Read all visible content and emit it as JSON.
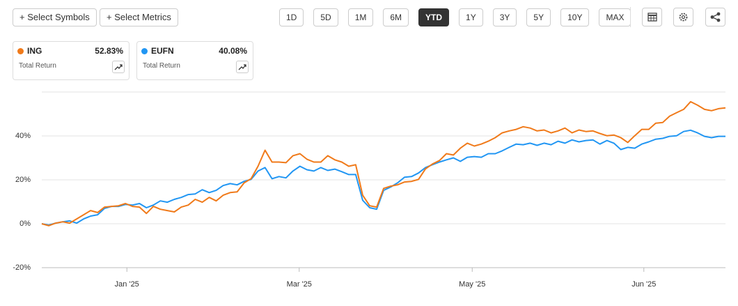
{
  "toolbar": {
    "buttons": [
      "+ Select Symbols",
      "+ Select Metrics"
    ],
    "ranges": [
      "1D",
      "5D",
      "1M",
      "6M",
      "YTD",
      "1Y",
      "3Y",
      "5Y",
      "10Y",
      "MAX"
    ],
    "active_range": 4
  },
  "cards": [
    {
      "value": "52.83%",
      "label": "Total Return"
    },
    {
      "value": "40.08%",
      "label": "Total Return"
    }
  ],
  "chart_data": {
    "type": "line",
    "grid": true,
    "xlim": [
      0,
      98
    ],
    "xticks": [
      {
        "value": 12.2,
        "label": "Jan '25"
      },
      {
        "value": 36.9,
        "label": "Mar '25"
      },
      {
        "value": 61.7,
        "label": "May '25"
      },
      {
        "value": 86.3,
        "label": "Jun '25"
      }
    ],
    "ylim": [
      -20,
      60
    ],
    "yticks": [
      {
        "value": -20,
        "label": "-20%"
      },
      {
        "value": 0,
        "label": "0%"
      },
      {
        "value": 20,
        "label": "20%"
      },
      {
        "value": 40,
        "label": "40%"
      }
    ],
    "series": [
      {
        "name": "ING",
        "color": "#f07a1a",
        "values": [
          0,
          -0.9,
          0.3,
          0.9,
          0.3,
          2.2,
          4.1,
          6.0,
          5.1,
          7.6,
          7.9,
          8.2,
          9.2,
          7.9,
          7.6,
          4.7,
          7.9,
          6.6,
          6.0,
          5.4,
          7.6,
          8.5,
          11.1,
          9.8,
          12.0,
          10.4,
          13.0,
          14.2,
          14.5,
          18.6,
          20.5,
          26.2,
          33.5,
          28.1,
          28.1,
          27.8,
          31.0,
          31.9,
          29.4,
          28.1,
          28.1,
          31.0,
          29.1,
          28.1,
          26.2,
          26.9,
          13.0,
          8.2,
          7.6,
          16.1,
          17.1,
          17.7,
          19.0,
          19.3,
          20.2,
          25.0,
          27.2,
          28.8,
          31.9,
          31.3,
          34.4,
          36.7,
          35.4,
          36.3,
          37.6,
          39.2,
          41.4,
          42.3,
          43.0,
          44.2,
          43.6,
          42.3,
          42.7,
          41.4,
          42.3,
          43.6,
          41.4,
          42.7,
          42.0,
          42.3,
          41.1,
          40.1,
          40.4,
          39.2,
          37.0,
          40.1,
          43.0,
          43.0,
          45.8,
          46.1,
          49.0,
          50.6,
          52.1,
          55.6,
          54.0,
          52.1,
          51.5,
          52.4,
          52.8
        ]
      },
      {
        "name": "EUFN",
        "color": "#2196f3",
        "values": [
          0,
          -0.6,
          0.3,
          0.9,
          1.3,
          0.3,
          2.2,
          3.5,
          4.1,
          7.0,
          7.9,
          7.9,
          8.8,
          8.5,
          9.2,
          7.3,
          8.5,
          10.4,
          9.8,
          11.1,
          12.0,
          13.3,
          13.6,
          15.5,
          14.2,
          15.2,
          17.4,
          18.3,
          17.7,
          19.3,
          20.2,
          24.0,
          25.6,
          20.5,
          21.5,
          20.9,
          24.0,
          26.2,
          24.6,
          24.0,
          25.6,
          24.3,
          24.9,
          23.7,
          22.4,
          22.4,
          10.7,
          7.3,
          6.6,
          15.2,
          16.7,
          18.6,
          21.2,
          21.5,
          23.1,
          25.6,
          26.9,
          28.1,
          29.1,
          30.0,
          28.4,
          30.3,
          30.6,
          30.3,
          31.9,
          31.9,
          33.2,
          34.8,
          36.3,
          36.0,
          36.7,
          35.7,
          36.7,
          36.0,
          37.6,
          36.7,
          38.2,
          37.3,
          37.9,
          38.2,
          36.3,
          37.9,
          36.7,
          33.8,
          34.8,
          34.4,
          36.3,
          37.3,
          38.5,
          38.9,
          39.8,
          40.1,
          42.0,
          42.6,
          41.4,
          39.8,
          39.2,
          39.8,
          39.8
        ]
      }
    ]
  }
}
